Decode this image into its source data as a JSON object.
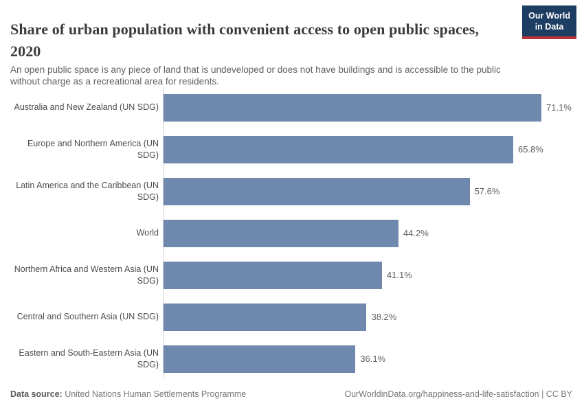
{
  "header": {
    "title": "Share of urban population with convenient access to open public spaces, 2020",
    "subtitle": "An open public space is any piece of land that is undeveloped or does not have buildings and is accessible to the public without charge as a recreational area for residents.",
    "logo": {
      "line1": "Our World",
      "line2": "in Data",
      "background_color": "#1d3d63",
      "accent_color": "#bf3036"
    }
  },
  "chart_data": {
    "type": "bar",
    "orientation": "horizontal",
    "title": "Share of urban population with convenient access to open public spaces, 2020",
    "categories": [
      "Australia and New Zealand (UN SDG)",
      "Europe and Northern America (UN SDG)",
      "Latin America and the Caribbean (UN SDG)",
      "World",
      "Northern Africa and Western Asia (UN SDG)",
      "Central and Southern Asia (UN SDG)",
      "Eastern and South-Eastern Asia (UN SDG)"
    ],
    "values": [
      71.1,
      65.8,
      57.6,
      44.2,
      41.1,
      38.2,
      36.1
    ],
    "value_labels": [
      "71.1%",
      "65.8%",
      "57.6%",
      "44.2%",
      "41.1%",
      "38.2%",
      "36.1%"
    ],
    "unit": "%",
    "bar_color": "#6e88ae",
    "grid": false,
    "value_label_position": "end-of-bar",
    "sorted": "descending"
  },
  "footer": {
    "datasource_label": "Data source:",
    "datasource_value": " United Nations Human Settlements Programme",
    "link": "OurWorldinData.org/happiness-and-life-satisfaction | CC BY"
  }
}
